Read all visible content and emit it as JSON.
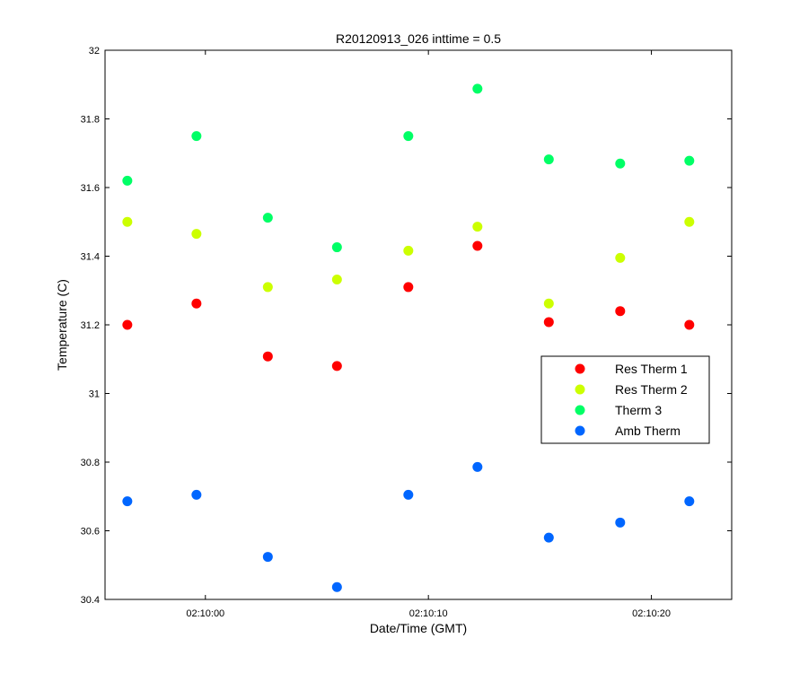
{
  "chart_data": {
    "type": "scatter",
    "title": "R20120913_026 inttime = 0.5",
    "xlabel": "Date/Time (GMT)",
    "ylabel": "Temperature (C)",
    "x_unit": "time (GMT)",
    "xlim": [
      "02:09:55.5",
      "02:10:23.6"
    ],
    "ylim": [
      30.4,
      32
    ],
    "yticks": [
      30.4,
      30.6,
      30.8,
      31,
      31.2,
      31.4,
      31.6,
      31.8,
      32
    ],
    "ytick_labels": [
      "30.4",
      "30.6",
      "30.8",
      "31",
      "31.2",
      "31.4",
      "31.6",
      "31.8",
      "32"
    ],
    "xticks": [
      "02:10:00",
      "02:10:10",
      "02:10:20"
    ],
    "xtick_labels": [
      "02:10:00",
      "02:10:10",
      "02:10:20"
    ],
    "x": [
      "02:09:56.5",
      "02:09:59.6",
      "02:10:02.8",
      "02:10:05.9",
      "02:10:09.1",
      "02:10:12.2",
      "02:10:15.4",
      "02:10:18.6",
      "02:10:21.7"
    ],
    "series": [
      {
        "name": "Res Therm 1",
        "color": "#ff0000",
        "values": [
          31.2,
          31.262,
          31.108,
          31.08,
          31.31,
          31.43,
          31.208,
          31.24,
          31.2
        ]
      },
      {
        "name": "Res Therm 2",
        "color": "#ccff00",
        "values": [
          31.5,
          31.465,
          31.31,
          31.332,
          31.416,
          31.486,
          31.262,
          31.395,
          31.5
        ]
      },
      {
        "name": "Therm 3",
        "color": "#00ff66",
        "values": [
          31.62,
          31.75,
          31.512,
          31.426,
          31.75,
          31.888,
          31.682,
          31.67,
          31.678
        ]
      },
      {
        "name": "Amb Therm",
        "color": "#0066ff",
        "values": [
          30.686,
          30.705,
          30.524,
          30.436,
          30.705,
          30.786,
          30.58,
          30.624,
          30.686
        ]
      }
    ],
    "grid": false,
    "legend_position": "right"
  }
}
